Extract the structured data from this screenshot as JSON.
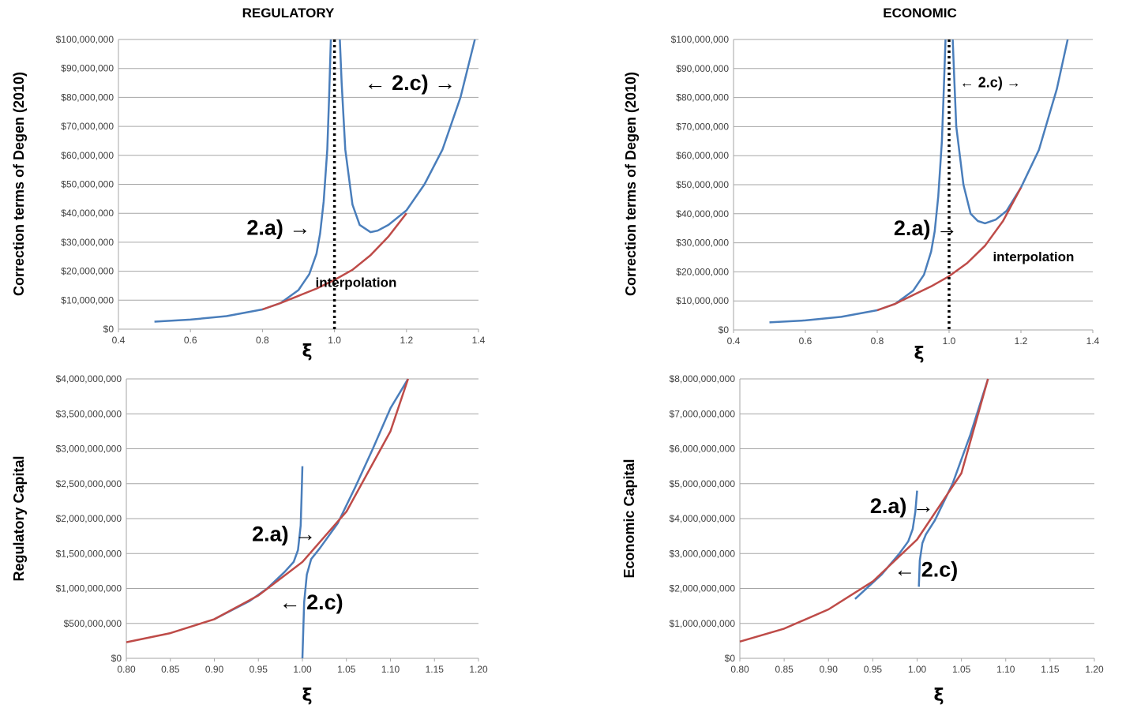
{
  "chart_data": [
    {
      "id": "reg-correction",
      "type": "line",
      "title": "REGULATORY",
      "xlabel": "ξ",
      "ylabel": "Correction terms of Degen (2010)",
      "xlim": [
        0.4,
        1.4
      ],
      "ylim": [
        0,
        100000000
      ],
      "x_ticks": [
        "0.4",
        "0.6",
        "0.8",
        "1.0",
        "1.2",
        "1.4"
      ],
      "y_ticks": [
        "$0",
        "$10,000,000",
        "$20,000,000",
        "$30,000,000",
        "$40,000,000",
        "$50,000,000",
        "$60,000,000",
        "$70,000,000",
        "$80,000,000",
        "$90,000,000",
        "$100,000,000"
      ],
      "grid": true,
      "vline_x": 1.0,
      "series": [
        {
          "color": "#4a7ebb",
          "segments": [
            [
              [
                0.5,
                2600000
              ],
              [
                0.6,
                3300000
              ],
              [
                0.7,
                4500000
              ],
              [
                0.8,
                6800000
              ],
              [
                0.85,
                9000000
              ],
              [
                0.9,
                13500000
              ],
              [
                0.93,
                19000000
              ],
              [
                0.95,
                26000000
              ],
              [
                0.96,
                33000000
              ],
              [
                0.97,
                44000000
              ],
              [
                0.98,
                62000000
              ],
              [
                0.985,
                80000000
              ],
              [
                0.99,
                100000000
              ]
            ],
            [
              [
                1.015,
                100000000
              ],
              [
                1.02,
                85000000
              ],
              [
                1.03,
                62000000
              ],
              [
                1.05,
                43000000
              ],
              [
                1.07,
                36000000
              ],
              [
                1.1,
                33500000
              ],
              [
                1.12,
                34000000
              ],
              [
                1.15,
                36000000
              ],
              [
                1.2,
                41000000
              ],
              [
                1.25,
                50000000
              ],
              [
                1.3,
                62000000
              ],
              [
                1.35,
                80000000
              ],
              [
                1.39,
                100000000
              ]
            ]
          ]
        },
        {
          "color": "#be4b48",
          "segments": [
            [
              [
                0.8,
                6800000
              ],
              [
                0.85,
                9000000
              ],
              [
                0.9,
                11500000
              ],
              [
                0.95,
                14000000
              ],
              [
                1.0,
                17000000
              ],
              [
                1.05,
                20500000
              ],
              [
                1.1,
                25500000
              ],
              [
                1.15,
                32000000
              ],
              [
                1.2,
                40000000
              ]
            ]
          ]
        }
      ],
      "annotations": [
        {
          "text": "2.a) →",
          "x": 0.845,
          "y": 34500000,
          "size": "big"
        },
        {
          "text": "← 2.c) →",
          "x": 1.21,
          "y": 84500000,
          "size": "big"
        },
        {
          "text": "interpolation",
          "x": 1.06,
          "y": 15800000,
          "size": "small"
        }
      ]
    },
    {
      "id": "econ-correction",
      "type": "line",
      "title": "ECONOMIC",
      "xlabel": "ξ",
      "ylabel": "Correction terms of Degen (2010)",
      "xlim": [
        0.4,
        1.4
      ],
      "ylim": [
        0,
        100000000
      ],
      "x_ticks": [
        "0.4",
        "0.6",
        "0.8",
        "1.0",
        "1.2",
        "1.4"
      ],
      "y_ticks": [
        "$0",
        "$10,000,000",
        "$20,000,000",
        "$30,000,000",
        "$40,000,000",
        "$50,000,000",
        "$60,000,000",
        "$70,000,000",
        "$80,000,000",
        "$90,000,000",
        "$100,000,000"
      ],
      "grid": true,
      "vline_x": 1.0,
      "series": [
        {
          "color": "#4a7ebb",
          "segments": [
            [
              [
                0.5,
                2600000
              ],
              [
                0.6,
                3300000
              ],
              [
                0.7,
                4500000
              ],
              [
                0.8,
                6800000
              ],
              [
                0.85,
                9000000
              ],
              [
                0.9,
                13500000
              ],
              [
                0.93,
                19000000
              ],
              [
                0.95,
                27000000
              ],
              [
                0.96,
                34000000
              ],
              [
                0.97,
                46000000
              ],
              [
                0.98,
                65000000
              ],
              [
                0.985,
                82000000
              ],
              [
                0.99,
                100000000
              ]
            ],
            [
              [
                1.01,
                100000000
              ],
              [
                1.015,
                85000000
              ],
              [
                1.02,
                70000000
              ],
              [
                1.04,
                50000000
              ],
              [
                1.06,
                40000000
              ],
              [
                1.08,
                37500000
              ],
              [
                1.1,
                36700000
              ],
              [
                1.13,
                38000000
              ],
              [
                1.16,
                41000000
              ],
              [
                1.2,
                49000000
              ],
              [
                1.25,
                62000000
              ],
              [
                1.3,
                83000000
              ],
              [
                1.33,
                100000000
              ]
            ]
          ]
        },
        {
          "color": "#be4b48",
          "segments": [
            [
              [
                0.8,
                6800000
              ],
              [
                0.85,
                9000000
              ],
              [
                0.9,
                12000000
              ],
              [
                0.95,
                15000000
              ],
              [
                1.0,
                18500000
              ],
              [
                1.05,
                23000000
              ],
              [
                1.1,
                29000000
              ],
              [
                1.15,
                37500000
              ],
              [
                1.2,
                49000000
              ]
            ]
          ]
        }
      ],
      "annotations": [
        {
          "text": "2.a) →",
          "x": 0.935,
          "y": 34500000,
          "size": "big"
        },
        {
          "text": "← 2.c) →",
          "x": 1.115,
          "y": 84800000,
          "size": "mid"
        },
        {
          "text": "interpolation",
          "x": 1.235,
          "y": 24900000,
          "size": "small"
        }
      ]
    },
    {
      "id": "reg-capital",
      "type": "line",
      "xlabel": "ξ",
      "ylabel": "Regulatory Capital",
      "xlim": [
        0.8,
        1.2
      ],
      "ylim": [
        0,
        4000000000
      ],
      "x_ticks": [
        "0.80",
        "0.85",
        "0.90",
        "0.95",
        "1.00",
        "1.05",
        "1.10",
        "1.15",
        "1.20"
      ],
      "y_ticks": [
        "$0",
        "$500,000,000",
        "$1,000,000,000",
        "$1,500,000,000",
        "$2,000,000,000",
        "$2,500,000,000",
        "$3,000,000,000",
        "$3,500,000,000",
        "$4,000,000,000"
      ],
      "grid": true,
      "series": [
        {
          "color": "#4a7ebb",
          "segments": [
            [
              [
                0.9,
                560000000
              ],
              [
                0.94,
                820000000
              ],
              [
                0.96,
                1000000000
              ],
              [
                0.98,
                1240000000
              ],
              [
                0.99,
                1380000000
              ],
              [
                0.995,
                1550000000
              ],
              [
                0.998,
                1900000000
              ],
              [
                0.999,
                2300000000
              ],
              [
                1.0,
                2750000000
              ]
            ],
            [
              [
                1.0,
                0
              ],
              [
                1.001,
                400000000
              ],
              [
                1.002,
                800000000
              ],
              [
                1.005,
                1200000000
              ],
              [
                1.01,
                1420000000
              ],
              [
                1.02,
                1580000000
              ],
              [
                1.04,
                1930000000
              ],
              [
                1.06,
                2450000000
              ],
              [
                1.08,
                3000000000
              ],
              [
                1.1,
                3580000000
              ],
              [
                1.12,
                4000000000
              ]
            ]
          ]
        },
        {
          "color": "#be4b48",
          "segments": [
            [
              [
                0.8,
                230000000
              ],
              [
                0.85,
                360000000
              ],
              [
                0.9,
                560000000
              ],
              [
                0.95,
                900000000
              ],
              [
                1.0,
                1380000000
              ],
              [
                1.05,
                2100000000
              ],
              [
                1.1,
                3250000000
              ],
              [
                1.12,
                4000000000
              ]
            ]
          ]
        }
      ],
      "annotations": [
        {
          "text": "2.a) →",
          "x": 0.979,
          "y": 1760000000,
          "size": "big"
        },
        {
          "text": "← 2.c)",
          "x": 1.01,
          "y": 780000000,
          "size": "big"
        }
      ]
    },
    {
      "id": "econ-capital",
      "type": "line",
      "xlabel": "ξ",
      "ylabel": "Economic Capital",
      "xlim": [
        0.8,
        1.2
      ],
      "ylim": [
        0,
        8000000000
      ],
      "x_ticks": [
        "0.80",
        "0.85",
        "0.90",
        "0.95",
        "1.00",
        "1.05",
        "1.10",
        "1.15",
        "1.20"
      ],
      "y_ticks": [
        "$0",
        "$1,000,000,000",
        "$2,000,000,000",
        "$3,000,000,000",
        "$4,000,000,000",
        "$5,000,000,000",
        "$6,000,000,000",
        "$7,000,000,000",
        "$8,000,000,000"
      ],
      "grid": true,
      "series": [
        {
          "color": "#4a7ebb",
          "segments": [
            [
              [
                0.93,
                1700000000
              ],
              [
                0.96,
                2400000000
              ],
              [
                0.98,
                3000000000
              ],
              [
                0.99,
                3350000000
              ],
              [
                0.995,
                3700000000
              ],
              [
                0.998,
                4200000000
              ],
              [
                1.0,
                4800000000
              ]
            ],
            [
              [
                1.002,
                2050000000
              ],
              [
                1.003,
                2800000000
              ],
              [
                1.006,
                3300000000
              ],
              [
                1.01,
                3550000000
              ],
              [
                1.02,
                3950000000
              ],
              [
                1.04,
                5000000000
              ],
              [
                1.06,
                6400000000
              ],
              [
                1.08,
                8000000000
              ]
            ]
          ]
        },
        {
          "color": "#be4b48",
          "segments": [
            [
              [
                0.8,
                480000000
              ],
              [
                0.85,
                850000000
              ],
              [
                0.9,
                1400000000
              ],
              [
                0.95,
                2200000000
              ],
              [
                1.0,
                3400000000
              ],
              [
                1.05,
                5300000000
              ],
              [
                1.08,
                8000000000
              ]
            ]
          ]
        }
      ],
      "annotations": [
        {
          "text": "2.a) →",
          "x": 0.983,
          "y": 4320000000,
          "size": "big"
        },
        {
          "text": "← 2.c)",
          "x": 1.01,
          "y": 2500000000,
          "size": "big"
        }
      ]
    }
  ]
}
